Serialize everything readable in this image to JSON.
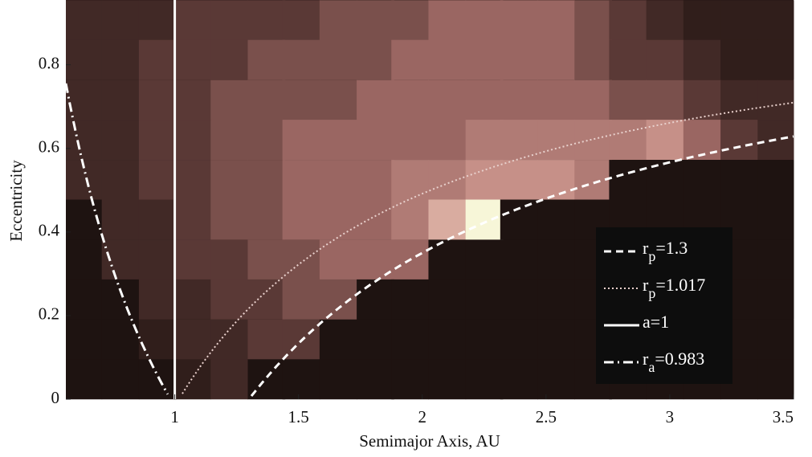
{
  "chart_data": {
    "type": "heatmap",
    "xlabel": "Semimajor Axis, AU",
    "ylabel": "Eccentricity",
    "xlim": [
      0.56,
      3.5
    ],
    "ylim": [
      0,
      0.955
    ],
    "xticks": [
      1,
      1.5,
      2,
      2.5,
      3,
      3.5
    ],
    "yticks": [
      0,
      0.2,
      0.4,
      0.6,
      0.8
    ],
    "x": [
      0.63,
      0.78,
      0.93,
      1.07,
      1.22,
      1.37,
      1.51,
      1.66,
      1.81,
      1.95,
      2.1,
      2.25,
      2.39,
      2.54,
      2.69,
      2.83,
      2.98,
      3.13,
      3.28,
      3.43
    ],
    "y": [
      0.907,
      0.812,
      0.716,
      0.621,
      0.525,
      0.43,
      0.334,
      0.239,
      0.143,
      0.048
    ],
    "clim": [
      0,
      10
    ],
    "colormap": [
      "#1e1311",
      "#4a2e2b",
      "#9a6662",
      "#d19a92",
      "#f7f6d8"
    ],
    "z": [
      [
        2,
        2,
        2,
        3,
        3,
        3,
        3,
        4,
        4,
        4,
        5,
        5,
        5,
        5,
        4,
        3,
        2,
        1,
        1,
        1
      ],
      [
        2,
        2,
        3,
        3,
        3,
        4,
        4,
        4,
        4,
        5,
        5,
        5,
        5,
        5,
        4,
        3,
        3,
        2,
        1,
        1
      ],
      [
        2,
        2,
        3,
        3,
        4,
        4,
        4,
        4,
        5,
        5,
        5,
        5,
        5,
        5,
        5,
        4,
        4,
        3,
        2,
        2
      ],
      [
        2,
        2,
        3,
        3,
        4,
        4,
        5,
        5,
        5,
        5,
        5,
        6,
        6,
        6,
        6,
        6,
        7,
        5,
        3,
        2
      ],
      [
        2,
        2,
        3,
        3,
        4,
        4,
        5,
        5,
        5,
        6,
        6,
        7,
        7,
        7,
        6,
        0,
        0,
        0,
        0,
        0
      ],
      [
        0,
        2,
        2,
        3,
        4,
        4,
        5,
        5,
        5,
        6,
        8,
        10,
        0,
        0,
        0,
        0,
        0,
        0,
        0,
        0
      ],
      [
        0,
        2,
        2,
        3,
        3,
        4,
        4,
        5,
        5,
        5,
        0,
        0,
        0,
        0,
        0,
        0,
        0,
        0,
        0,
        0
      ],
      [
        0,
        0,
        2,
        2,
        3,
        3,
        4,
        4,
        0,
        0,
        0,
        0,
        0,
        0,
        0,
        0,
        0,
        0,
        0,
        0
      ],
      [
        0,
        0,
        1,
        2,
        2,
        3,
        3,
        0,
        0,
        0,
        0,
        0,
        0,
        0,
        0,
        0,
        0,
        0,
        0,
        0
      ],
      [
        0,
        0,
        0,
        1,
        2,
        0,
        0,
        0,
        0,
        0,
        0,
        0,
        0,
        0,
        0,
        0,
        0,
        0,
        0,
        0
      ]
    ],
    "series": [
      {
        "label": [
          "r",
          "p",
          "=1.3"
        ],
        "kind": "pericenter",
        "value": 1.3,
        "color": "#ffffff",
        "style": "dashed"
      },
      {
        "label": [
          "r",
          "p",
          "=1.017"
        ],
        "kind": "pericenter",
        "value": 1.017,
        "color": "#e8d0cc",
        "style": "dotted"
      },
      {
        "label": [
          "a=1"
        ],
        "kind": "semimajor",
        "value": 1,
        "color": "#ffffff",
        "style": "solid"
      },
      {
        "label": [
          "r",
          "a",
          "=0.983"
        ],
        "kind": "apocenter",
        "value": 0.983,
        "color": "#ffffff",
        "style": "dashdot"
      }
    ],
    "legend": "lower right"
  }
}
